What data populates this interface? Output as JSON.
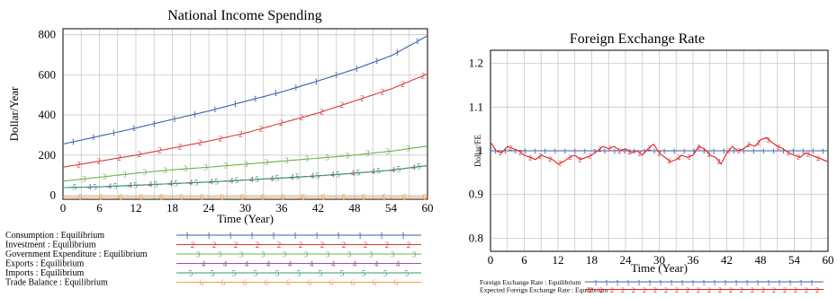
{
  "chart_data": [
    {
      "type": "line",
      "title": "National Income Spending",
      "xlabel": "Time (Year)",
      "ylabel": "Dollar/Year",
      "xlim": [
        0,
        60
      ],
      "ylim": [
        -20,
        830
      ],
      "x_ticks": [
        "0",
        "6",
        "12",
        "18",
        "24",
        "30",
        "36",
        "42",
        "48",
        "54",
        "60"
      ],
      "y_ticks": [
        "0",
        "200",
        "400",
        "600",
        "800"
      ],
      "y_tick_values": [
        0,
        200,
        400,
        600,
        800
      ],
      "grid": true,
      "legend": "below",
      "x": [
        0,
        6,
        12,
        18,
        24,
        30,
        36,
        42,
        48,
        54,
        60
      ],
      "series": [
        {
          "name": "Consumption : Equilibrium",
          "marker": "1",
          "color": "#3a5fa8",
          "values": [
            255,
            295,
            335,
            378,
            420,
            468,
            515,
            570,
            628,
            695,
            795
          ]
        },
        {
          "name": "Investment : Equilibrium",
          "marker": "2",
          "color": "#d83a3a",
          "values": [
            140,
            170,
            200,
            235,
            270,
            310,
            360,
            410,
            470,
            530,
            605
          ]
        },
        {
          "name": "Government Expenditure : Equilibrium",
          "marker": "3",
          "color": "#6ab04c",
          "values": [
            70,
            90,
            110,
            127,
            140,
            155,
            170,
            185,
            200,
            220,
            245
          ]
        },
        {
          "name": "Exports : Equilibrium",
          "marker": "4",
          "color": "#9b4fa6",
          "values": [
            38,
            42,
            50,
            58,
            66,
            76,
            86,
            97,
            110,
            125,
            148
          ]
        },
        {
          "name": "Imports : Equilibrium",
          "marker": "5",
          "color": "#3a9a6a",
          "values": [
            38,
            42,
            50,
            58,
            66,
            76,
            86,
            97,
            110,
            125,
            148
          ]
        },
        {
          "name": "Trade Balance : Equilibrium",
          "marker": "6",
          "color": "#f0a050",
          "values": [
            -8,
            -8,
            -8,
            -8,
            -8,
            -8,
            -8,
            -8,
            -8,
            -8,
            -8
          ]
        }
      ]
    },
    {
      "type": "line",
      "title": "Foreign Exchange Rate",
      "xlabel": "Time (Year)",
      "ylabel": "Dollar/FE",
      "xlim": [
        0,
        60
      ],
      "ylim": [
        0.77,
        1.23
      ],
      "x_ticks": [
        "0",
        "6",
        "12",
        "18",
        "24",
        "30",
        "36",
        "42",
        "48",
        "54",
        "60"
      ],
      "y_ticks": [
        "0.8",
        "0.9",
        "1",
        "1.1",
        "1.2"
      ],
      "y_tick_values": [
        0.8,
        0.9,
        1,
        1.1,
        1.2
      ],
      "grid": true,
      "legend": "below",
      "x": [
        0,
        1,
        2,
        3,
        4,
        5,
        6,
        7,
        8,
        9,
        10,
        11,
        12,
        13,
        14,
        15,
        16,
        17,
        18,
        19,
        20,
        21,
        22,
        23,
        24,
        25,
        26,
        27,
        28,
        29,
        30,
        31,
        32,
        33,
        34,
        35,
        36,
        37,
        38,
        39,
        40,
        41,
        42,
        43,
        44,
        45,
        46,
        47,
        48,
        49,
        50,
        51,
        52,
        53,
        54,
        55,
        56,
        57,
        58,
        59,
        60
      ],
      "series": [
        {
          "name": "Foreign Exchange Rate : Equilibrium",
          "marker": "1",
          "color": "#3a5fa8",
          "values": [
            1,
            1,
            1,
            1,
            1,
            1,
            1,
            1,
            1,
            1,
            1,
            1,
            1,
            1,
            1,
            1,
            1,
            1,
            1,
            1,
            1,
            1,
            1,
            1,
            1,
            1,
            1,
            1,
            1,
            1,
            1,
            1,
            1,
            1,
            1,
            1,
            1,
            1,
            1,
            1,
            1,
            1,
            1,
            1,
            1,
            1,
            1,
            1,
            1,
            1,
            1,
            1,
            1,
            1,
            1,
            1,
            1,
            1,
            1,
            1,
            1
          ]
        },
        {
          "name": "Expected Foreign Exchange Rate : Equilibrium",
          "marker": "2",
          "color": "#e02020",
          "values": [
            1.02,
            1.0,
            0.995,
            1.01,
            1.005,
            1.0,
            0.99,
            0.985,
            0.98,
            0.99,
            0.985,
            0.98,
            0.97,
            0.975,
            0.985,
            0.99,
            0.98,
            0.985,
            0.99,
            1.0,
            1.01,
            1.005,
            1.01,
            1.0,
            1.005,
            0.995,
            1.0,
            0.99,
            1.005,
            1.015,
            0.995,
            0.985,
            0.975,
            0.98,
            0.99,
            0.985,
            0.99,
            1.01,
            1.005,
            0.99,
            0.985,
            0.97,
            0.995,
            1.01,
            1.0,
            1.005,
            1.015,
            1.01,
            1.025,
            1.03,
            1.02,
            1.01,
            1.005,
            0.995,
            0.99,
            0.985,
            0.995,
            0.99,
            0.985,
            0.98,
            0.975
          ]
        }
      ]
    }
  ]
}
